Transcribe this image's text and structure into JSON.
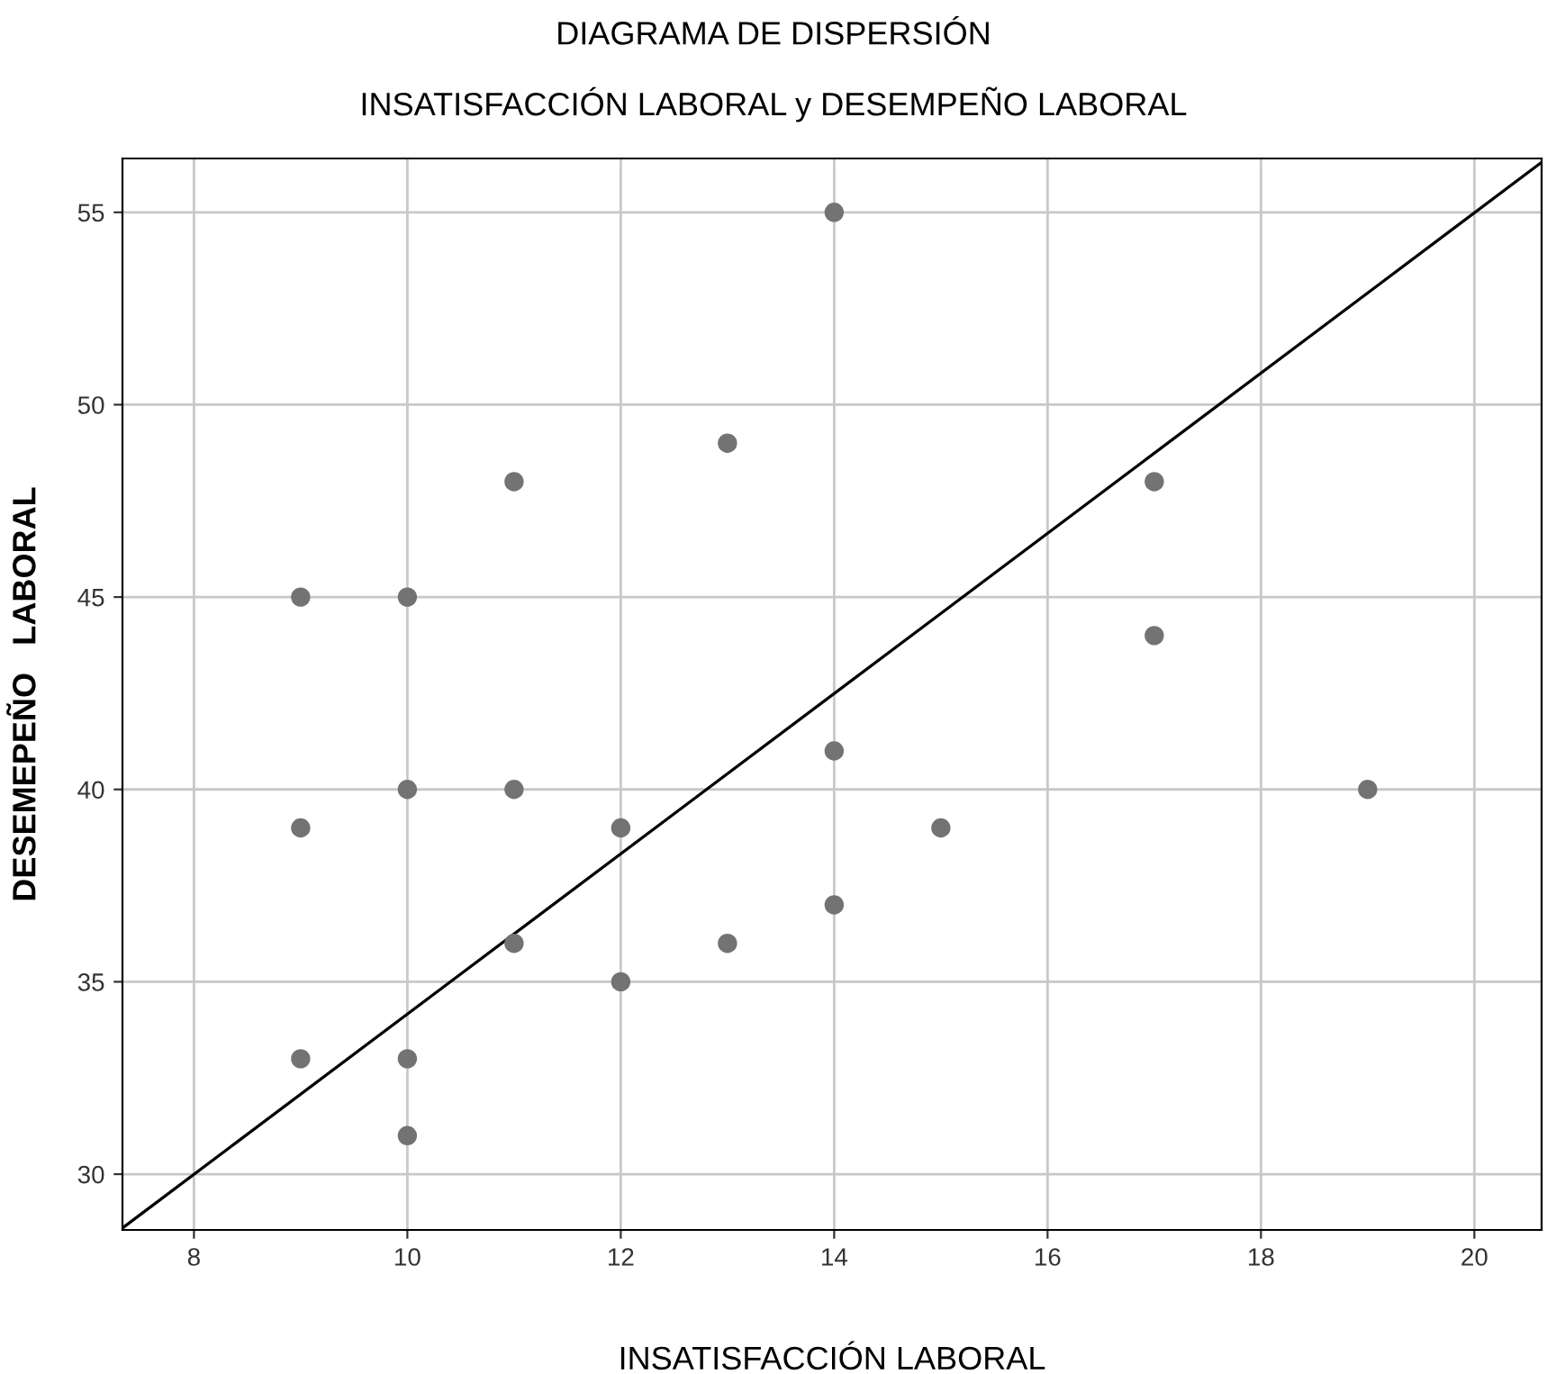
{
  "chart_data": {
    "type": "scatter",
    "title": "DIAGRAMA DE DISPERSIÓN",
    "subtitle": "INSATISFACCIÓN LABORAL y DESEMPEÑO LABORAL",
    "xlabel": "INSATISFACCIÓN LABORAL",
    "ylabel": "DESEMEPEÑO   LABORAL",
    "series": [
      {
        "type": "scatter",
        "color": "#737373",
        "marker": "circle",
        "x": [
          9,
          9,
          9,
          10,
          10,
          10,
          10,
          11,
          11,
          11,
          12,
          12,
          13,
          13,
          14,
          14,
          14,
          15,
          17,
          17,
          19
        ],
        "values": [
          45,
          39,
          33,
          45,
          40,
          33,
          31,
          48,
          40,
          36,
          39,
          35,
          49,
          36,
          55,
          41,
          37,
          39,
          48,
          44,
          40
        ]
      },
      {
        "type": "line",
        "color": "#000000",
        "marker": "none",
        "x": [
          7.33,
          20.63
        ],
        "values": [
          28.6,
          56.3
        ]
      }
    ],
    "xlim": [
      7.33,
      20.63
    ],
    "ylim": [
      28.55,
      56.4
    ],
    "xticks": [
      8,
      10,
      12,
      14,
      16,
      18,
      20
    ],
    "yticks": [
      30,
      35,
      40,
      45,
      50,
      55
    ],
    "grid": true,
    "legend": false
  }
}
